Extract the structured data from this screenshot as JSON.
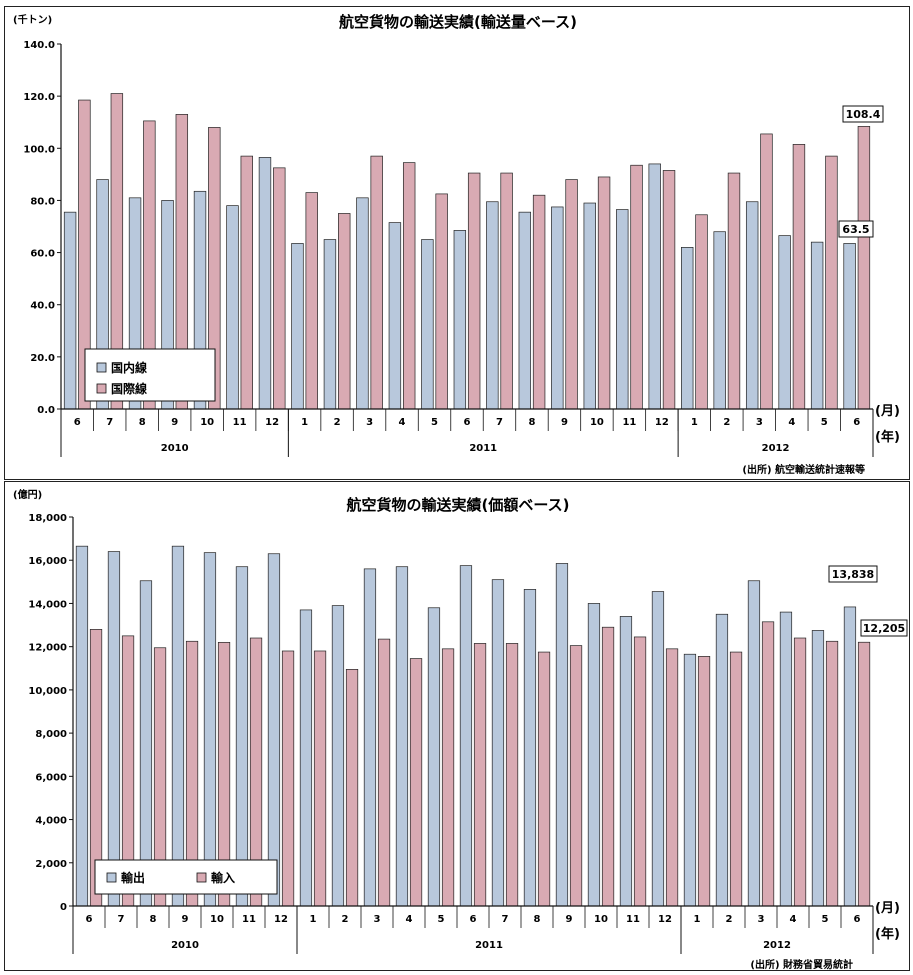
{
  "chart_data": [
    {
      "type": "bar",
      "title": "航空貨物の輸送実績(輸送量ベース)",
      "unit_label": "(千トン)",
      "categories": [
        "6",
        "7",
        "8",
        "9",
        "10",
        "11",
        "12",
        "1",
        "2",
        "3",
        "4",
        "5",
        "6",
        "7",
        "8",
        "9",
        "10",
        "11",
        "12",
        "1",
        "2",
        "3",
        "4",
        "5",
        "6"
      ],
      "year_groups": [
        {
          "label": "2010",
          "start": 0,
          "end": 6
        },
        {
          "label": "2011",
          "start": 7,
          "end": 18
        },
        {
          "label": "2012",
          "start": 19,
          "end": 24
        }
      ],
      "series": [
        {
          "name": "国内線",
          "color": "#b8c8dc",
          "values": [
            75.5,
            88.0,
            81.0,
            80.0,
            83.5,
            78.0,
            96.5,
            63.5,
            65.0,
            81.0,
            71.5,
            65.0,
            68.5,
            79.5,
            75.5,
            77.5,
            79.0,
            76.5,
            94.0,
            62.0,
            68.0,
            79.5,
            66.5,
            64.0,
            63.5
          ]
        },
        {
          "name": "国際線",
          "color": "#d9aab3",
          "values": [
            118.5,
            121.0,
            110.5,
            113.0,
            108.0,
            97.0,
            92.5,
            83.0,
            75.0,
            97.0,
            94.5,
            82.5,
            90.5,
            90.5,
            82.0,
            88.0,
            89.0,
            93.5,
            91.5,
            74.5,
            90.5,
            105.5,
            101.5,
            97.0,
            108.4
          ]
        }
      ],
      "y_ticks": [
        "0.0",
        "20.0",
        "40.0",
        "60.0",
        "80.0",
        "100.0",
        "120.0",
        "140.0"
      ],
      "ylim": [
        0,
        140
      ],
      "callouts": [
        "108.4",
        "63.5"
      ],
      "x_unit_month": "(月)",
      "x_unit_year": "(年)",
      "source": "(出所) 航空輸送統計速報等",
      "legend_position": "bottom-left"
    },
    {
      "type": "bar",
      "title": "航空貨物の輸送実績(価額ベース)",
      "unit_label": "(億円)",
      "categories": [
        "6",
        "7",
        "8",
        "9",
        "10",
        "11",
        "12",
        "1",
        "2",
        "3",
        "4",
        "5",
        "6",
        "7",
        "8",
        "9",
        "10",
        "11",
        "12",
        "1",
        "2",
        "3",
        "4",
        "5",
        "6"
      ],
      "year_groups": [
        {
          "label": "2010",
          "start": 0,
          "end": 6
        },
        {
          "label": "2011",
          "start": 7,
          "end": 18
        },
        {
          "label": "2012",
          "start": 19,
          "end": 24
        }
      ],
      "series": [
        {
          "name": "輸出",
          "color": "#b8c8dc",
          "values": [
            16650,
            16400,
            15050,
            16650,
            16350,
            15700,
            16300,
            13700,
            13900,
            15600,
            15700,
            13800,
            15750,
            15100,
            14650,
            15850,
            14000,
            13400,
            14550,
            11650,
            13500,
            15050,
            13600,
            12750,
            13838
          ]
        },
        {
          "name": "輸入",
          "color": "#d9aab3",
          "values": [
            12800,
            12500,
            11950,
            12250,
            12200,
            12400,
            11800,
            11800,
            10950,
            12350,
            11450,
            11900,
            12150,
            12150,
            11750,
            12050,
            12900,
            12450,
            11900,
            11550,
            11750,
            13150,
            12400,
            12250,
            12205
          ]
        }
      ],
      "y_ticks": [
        "0",
        "2,000",
        "4,000",
        "6,000",
        "8,000",
        "10,000",
        "12,000",
        "14,000",
        "16,000",
        "18,000"
      ],
      "ylim": [
        0,
        18000
      ],
      "callouts": [
        "13,838",
        "12,205"
      ],
      "x_unit_month": "(月)",
      "x_unit_year": "(年)",
      "source": "(出所) 財務省貿易統計",
      "legend_position": "bottom-left"
    }
  ]
}
